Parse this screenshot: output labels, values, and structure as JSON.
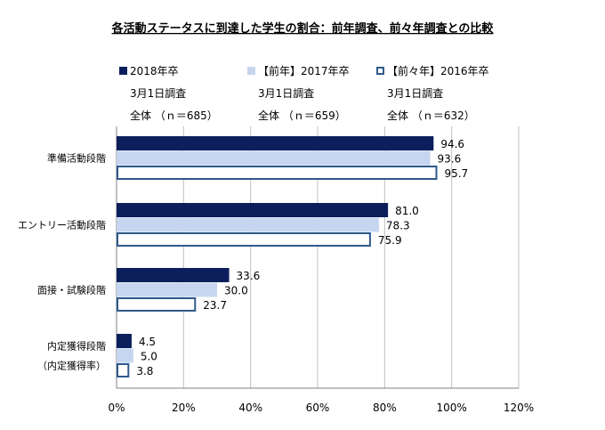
{
  "chart_data": {
    "type": "bar",
    "orientation": "horizontal",
    "title": "各活動ステータスに到達した学生の割合：前年調査、前々年調査との比較",
    "categories": [
      {
        "lines": [
          "準備活動段階"
        ]
      },
      {
        "lines": [
          "エントリー活動段階"
        ]
      },
      {
        "lines": [
          "面接・試験段階"
        ]
      },
      {
        "lines": [
          "内定獲得段階",
          "（内定獲得率）"
        ]
      }
    ],
    "series": [
      {
        "name": "2018年卒",
        "sub1": "3月1日調査",
        "sub2": "全体 （ｎ＝685）",
        "style": "solid",
        "color": "#0c1f5c",
        "values": [
          94.6,
          81.0,
          33.6,
          4.5
        ],
        "labels": [
          "94.6",
          "81.0",
          "33.6",
          "4.5"
        ]
      },
      {
        "name": "【前年】2017年卒",
        "sub1": "3月1日調査",
        "sub2": "全体 （ｎ＝659）",
        "style": "light",
        "color": "#c6d6f0",
        "values": [
          93.6,
          78.3,
          30.0,
          5.0
        ],
        "labels": [
          "93.6",
          "78.3",
          "30.0",
          "5.0"
        ]
      },
      {
        "name": "【前々年】2016年卒",
        "sub1": "3月1日調査",
        "sub2": "全体 （ｎ＝632）",
        "style": "outline",
        "color": "#2e5a8a",
        "values": [
          95.7,
          75.9,
          23.7,
          3.8
        ],
        "labels": [
          "95.7",
          "75.9",
          "23.7",
          "3.8"
        ]
      }
    ],
    "xlim": [
      0,
      120
    ],
    "xticks": [
      0,
      20,
      40,
      60,
      80,
      100,
      120
    ],
    "xtick_labels": [
      "0%",
      "20%",
      "40%",
      "60%",
      "80%",
      "100%",
      "120%"
    ],
    "grid": true,
    "legend_position": "top"
  }
}
